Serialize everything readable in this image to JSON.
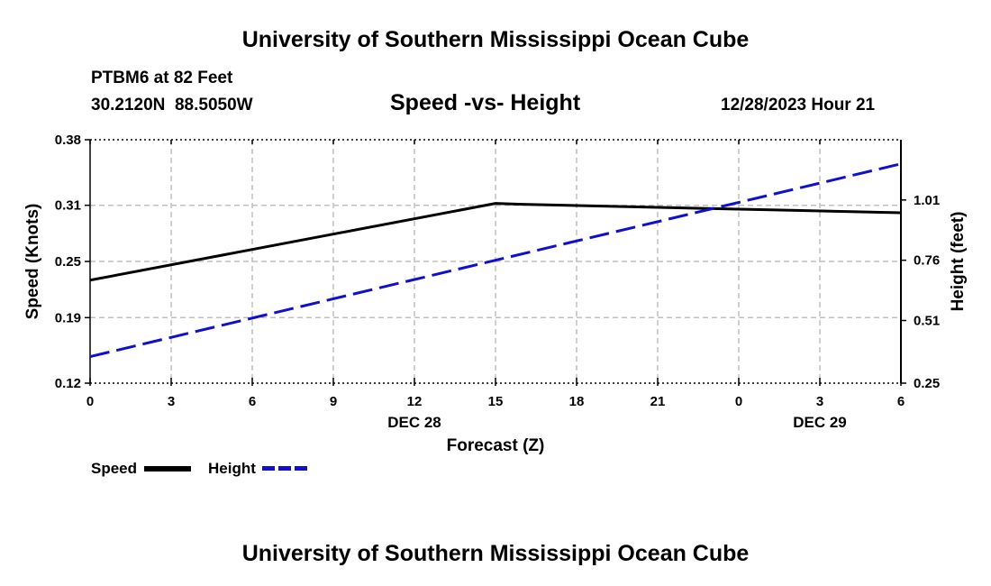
{
  "header": {
    "title": "University of Southern Mississippi Ocean Cube",
    "station": "PTBM6 at 82 Feet",
    "coords": "30.2120N  88.5050W",
    "subtitle": "Speed -vs- Height",
    "datetime": "12/28/2023 Hour 21"
  },
  "footer": {
    "title": "University of Southern Mississippi Ocean Cube"
  },
  "legend": {
    "speed_label": "Speed",
    "height_label": "Height",
    "speed_color": "#000000",
    "height_color": "#1010cc"
  },
  "chart_data": {
    "type": "line",
    "title": "Speed -vs- Height",
    "xlabel": "Forecast (Z)",
    "ylabel": "Speed (Knots)",
    "y2label": "Height (feet)",
    "x_hours": [
      0,
      3,
      6,
      9,
      12,
      15,
      18,
      21,
      24,
      27,
      30
    ],
    "x_tick_labels": [
      "0",
      "3",
      "6",
      "9",
      "12",
      "15",
      "18",
      "21",
      "0",
      "3",
      "6"
    ],
    "x_date_labels": [
      {
        "hour": 12,
        "label": "DEC 28"
      },
      {
        "hour": 27,
        "label": "DEC 29"
      }
    ],
    "xlim": [
      0,
      30
    ],
    "ylim": [
      0.12,
      0.38
    ],
    "y_ticks": [
      "0.12",
      "0.19",
      "0.25",
      "0.31",
      "0.38"
    ],
    "y2lim": [
      0.25,
      1.26
    ],
    "y2_ticks": [
      "0.25",
      "0.51",
      "0.76",
      "1.01"
    ],
    "grid": true,
    "series": [
      {
        "name": "Speed",
        "axis": "left",
        "style": "solid",
        "x": [
          0,
          15,
          16,
          30
        ],
        "values": [
          0.23,
          0.312,
          0.311,
          0.302
        ]
      },
      {
        "name": "Height",
        "axis": "right",
        "style": "dashed",
        "x": [
          0,
          30
        ],
        "values": [
          0.36,
          1.16
        ]
      }
    ]
  }
}
